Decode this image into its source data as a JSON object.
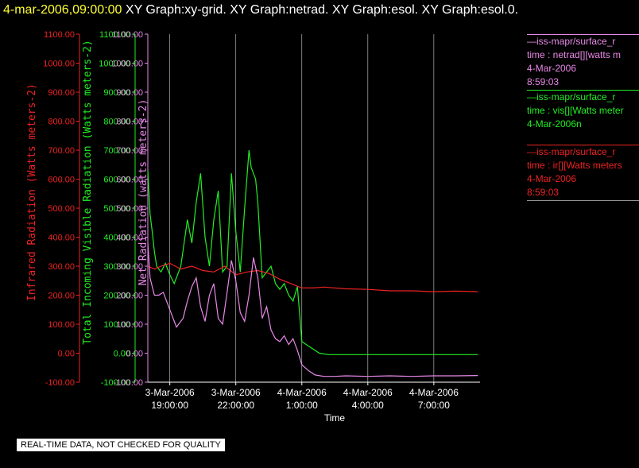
{
  "header": {
    "timestamp": "4-mar-2006,09:00:00",
    "titles": "XY Graph:xy-grid.  XY Graph:netrad.  XY Graph:esol.  XY Graph:esol.0."
  },
  "legend": [
    {
      "line1": "—iss-mapr/surface_r",
      "line2": "time : netrad[][watts m",
      "line3": "4-Mar-2006",
      "line4": "8:59:03",
      "color": "#e889e8"
    },
    {
      "line1": "—iss-mapr/surface_r",
      "line2": "time : vis[][Watts meter",
      "line3": "4-Mar-2006n",
      "line4": "",
      "color": "#22ee22"
    },
    {
      "line1": "—iss-mapr/surface_r",
      "line2": "time : ir[][Watts meters",
      "line3": "4-Mar-2006",
      "line4": "8:59:03",
      "color": "#ee2222"
    }
  ],
  "disclaimer": "REAL-TIME DATA, NOT CHECKED FOR QUALITY",
  "colors": {
    "ir": "#ee2222",
    "vis": "#22ee22",
    "netrad": "#e889e8",
    "grid": "#d0d0d0"
  },
  "chart_data": {
    "type": "line",
    "xlabel": "Time",
    "x_ticks": [
      {
        "line1": "3-Mar-2006",
        "line2": "19:00:00"
      },
      {
        "line1": "3-Mar-2006",
        "line2": "22:00:00"
      },
      {
        "line1": "4-Mar-2006",
        "line2": "1:00:00"
      },
      {
        "line1": "4-Mar-2006",
        "line2": "4:00:00"
      },
      {
        "line1": "4-Mar-2006",
        "line2": "7:00:00"
      }
    ],
    "x_tick_hours": [
      19,
      22,
      25,
      28,
      31
    ],
    "xlim_hours": [
      18,
      33.1
    ],
    "y_axes": [
      {
        "label": "Infrared Radiation (Watts meters-2)",
        "color": "#ee2222",
        "ticks": [
          "1100.00",
          "1000.00",
          "900.00",
          "800.00",
          "700.00",
          "600.00",
          "500.00",
          "400.00",
          "300.00",
          "200.00",
          "100.00",
          "0.00",
          "-100.00"
        ]
      },
      {
        "label": "Total Incoming Visible Radiation (Watts meters-2)",
        "color": "#22ee22",
        "ticks": [
          "1100.00",
          "1000.00",
          "900.00",
          "800.00",
          "700.00",
          "600.00",
          "500.00",
          "400.00",
          "300.00",
          "200.00",
          "100.00",
          "0.00",
          "-100.00"
        ]
      },
      {
        "label": "Net Radiation (watts meters-2)",
        "color": "#e889e8",
        "ticks": [
          "1100.00",
          "1000.00",
          "900.00",
          "800.00",
          "700.00",
          "600.00",
          "500.00",
          "400.00",
          "300.00",
          "200.00",
          "100.00",
          "0.00",
          "-100.00"
        ]
      }
    ],
    "ylim": [
      -100,
      1100
    ],
    "series": [
      {
        "key": "vis",
        "x": [
          18.0,
          18.1,
          18.2,
          18.3,
          18.4,
          18.6,
          18.8,
          19.0,
          19.2,
          19.5,
          19.8,
          20.0,
          20.2,
          20.4,
          20.6,
          20.8,
          21.0,
          21.2,
          21.4,
          21.6,
          21.8,
          22.0,
          22.2,
          22.4,
          22.6,
          22.7,
          22.9,
          23.0,
          23.2,
          23.4,
          23.6,
          23.8,
          24.0,
          24.2,
          24.4,
          24.6,
          24.8,
          25.0,
          25.4,
          25.8,
          26.2,
          26.6,
          27.0,
          28.0,
          29.0,
          30.0,
          31.0,
          32.0,
          33.0
        ],
        "values": [
          630,
          480,
          420,
          350,
          300,
          280,
          310,
          270,
          240,
          300,
          460,
          380,
          520,
          620,
          400,
          300,
          460,
          560,
          280,
          300,
          620,
          420,
          280,
          500,
          700,
          640,
          600,
          520,
          260,
          280,
          300,
          240,
          220,
          240,
          200,
          180,
          230,
          40,
          20,
          0,
          -5,
          -5,
          -5,
          -5,
          -5,
          -5,
          -5,
          -5,
          -5
        ]
      },
      {
        "key": "ir",
        "x": [
          18.0,
          18.3,
          18.6,
          19.0,
          19.5,
          20.0,
          20.5,
          21.0,
          21.5,
          22.0,
          22.5,
          23.0,
          23.5,
          24.0,
          24.5,
          25.0,
          25.5,
          26.0,
          27.0,
          28.0,
          29.0,
          30.0,
          31.0,
          32.0,
          33.0
        ],
        "values": [
          300,
          290,
          300,
          310,
          290,
          300,
          285,
          280,
          300,
          270,
          280,
          285,
          275,
          255,
          240,
          225,
          225,
          228,
          222,
          220,
          215,
          215,
          212,
          214,
          212
        ]
      },
      {
        "key": "netrad",
        "x": [
          18.0,
          18.1,
          18.2,
          18.3,
          18.5,
          18.7,
          19.0,
          19.3,
          19.6,
          19.8,
          20.0,
          20.2,
          20.4,
          20.6,
          20.8,
          21.0,
          21.2,
          21.4,
          21.6,
          21.8,
          22.0,
          22.2,
          22.4,
          22.6,
          22.8,
          23.0,
          23.2,
          23.4,
          23.6,
          23.8,
          24.0,
          24.2,
          24.4,
          24.6,
          24.8,
          25.0,
          25.3,
          25.6,
          26.0,
          26.5,
          27.0,
          28.0,
          29.0,
          30.0,
          31.0,
          32.0,
          33.0
        ],
        "values": [
          380,
          260,
          230,
          200,
          200,
          210,
          150,
          90,
          120,
          180,
          230,
          260,
          160,
          110,
          200,
          240,
          120,
          100,
          210,
          320,
          250,
          140,
          110,
          200,
          330,
          260,
          120,
          160,
          80,
          50,
          40,
          60,
          30,
          50,
          10,
          -40,
          -60,
          -75,
          -80,
          -80,
          -78,
          -80,
          -78,
          -80,
          -78,
          -78,
          -77
        ]
      }
    ]
  }
}
